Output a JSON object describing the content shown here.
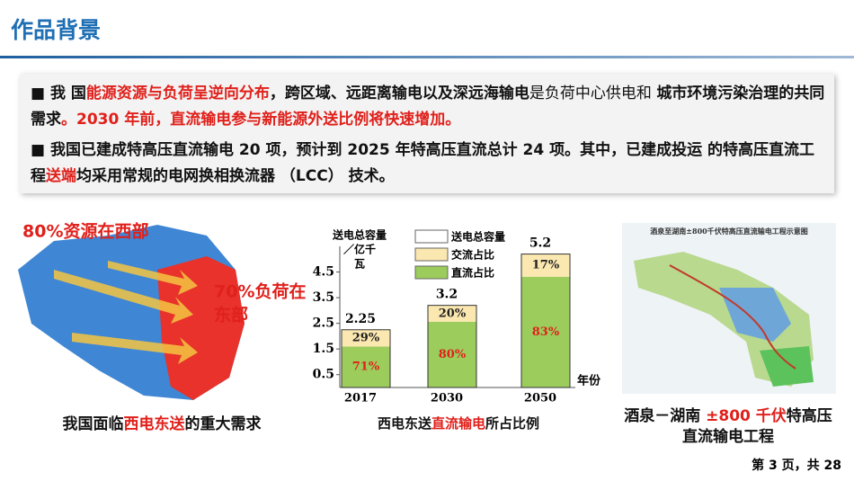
{
  "header": {
    "title": "作品背景"
  },
  "bullets": [
    [
      {
        "text": "■  我  国",
        "bold": true
      },
      {
        "text": "能源资源与负荷呈逆向分布",
        "bold": true,
        "color": "#e0201b"
      },
      {
        "text": "，跨区域、远距离输电以及深远海输电",
        "bold": true
      },
      {
        "text": "是负荷中心供电和 "
      },
      {
        "text": "城市环境污染治理的共同需求",
        "bold": true
      },
      {
        "text": "。2030 年前，直流输电参与新能源外送比例将快速增加。",
        "bold": true,
        "color": "#e0201b"
      }
    ],
    [
      {
        "text": "■ 我国已建成特高压直流输电 20 项，预计到 2025 年特高压直流总计 24 项。其中，已建成投运 的特高压直流工程",
        "bold": true
      },
      {
        "text": "送端",
        "bold": true,
        "color": "#e0201b"
      },
      {
        "text": "均采用常规的电网换相换流器 （LCC） 技术。",
        "bold": true
      }
    ]
  ],
  "left_panel": {
    "label_west": "80%资源在西部",
    "label_east": [
      "70%负荷在",
      "东部"
    ],
    "caption": [
      {
        "text": "我国面临"
      },
      {
        "text": "西电东送",
        "color": "#e0201b"
      },
      {
        "text": "的重大需求"
      }
    ]
  },
  "chart_data": {
    "type": "bar",
    "y_label": [
      "送电总容量",
      "／亿千",
      "瓦"
    ],
    "x_label": "年份",
    "categories": [
      "2017",
      "2030",
      "2050"
    ],
    "series": [
      {
        "name": "送电总容量",
        "color": "#ffffff",
        "values": [
          2.25,
          3.2,
          5.2
        ]
      },
      {
        "name": "直流占比",
        "color": "#9ccc5c",
        "values": [
          71,
          80,
          83
        ],
        "value_labels": [
          "71%",
          "80%",
          "83%"
        ]
      },
      {
        "name": "交流占比",
        "color": "#fbe8b0",
        "values": [
          29,
          20,
          17
        ],
        "value_labels": [
          "29%",
          "20%",
          "17%"
        ]
      }
    ],
    "ylim": [
      0,
      5.5
    ],
    "yticks": [
      0.5,
      1.5,
      2.5,
      3.5,
      4.5
    ],
    "caption": [
      {
        "text": "西电东送"
      },
      {
        "text": "直流输电",
        "color": "#e0201b"
      },
      {
        "text": "所占比例"
      }
    ]
  },
  "right_panel": {
    "map_title": "酒泉至湖南±800千伏特高压直流输电工程示意图",
    "caption": [
      {
        "text": "酒泉－湖南 "
      },
      {
        "text": "±800 千伏",
        "color": "#e0201b"
      },
      {
        "text": "特高压 直流输电工程",
        "color": "#111"
      }
    ]
  },
  "footer": "第 3 页，共 28"
}
